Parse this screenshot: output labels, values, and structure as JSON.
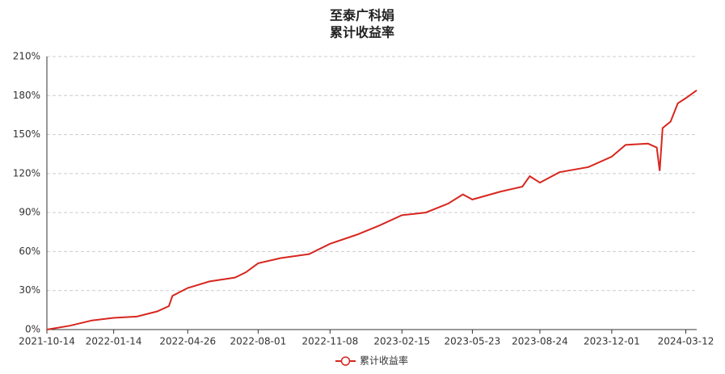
{
  "chart_data": {
    "type": "line",
    "title": "至泰广科娟",
    "subtitle": "累计收益率",
    "x": [
      "2021-10-14",
      "2021-11-15",
      "2021-12-15",
      "2022-01-14",
      "2022-02-15",
      "2022-03-15",
      "2022-03-31",
      "2022-04-05",
      "2022-04-26",
      "2022-05-26",
      "2022-06-30",
      "2022-07-15",
      "2022-08-01",
      "2022-09-01",
      "2022-10-10",
      "2022-11-08",
      "2022-12-15",
      "2023-01-15",
      "2023-02-15",
      "2023-03-20",
      "2023-04-20",
      "2023-05-10",
      "2023-05-23",
      "2023-06-30",
      "2023-07-31",
      "2023-08-10",
      "2023-08-24",
      "2023-09-20",
      "2023-10-30",
      "2023-12-01",
      "2023-12-20",
      "2024-01-20",
      "2024-02-01",
      "2024-02-05",
      "2024-02-09",
      "2024-02-20",
      "2024-03-01",
      "2024-03-12",
      "2024-03-27"
    ],
    "series": [
      {
        "name": "累计收益率",
        "color": "#d7261e",
        "values": [
          0,
          3,
          7,
          9,
          10,
          14,
          18,
          26,
          32,
          37,
          40,
          44,
          51,
          55,
          58,
          66,
          73,
          80,
          88,
          90,
          97,
          104,
          100,
          106,
          110,
          118,
          113,
          121,
          125,
          133,
          142,
          143,
          140,
          122,
          155,
          160,
          174,
          178,
          184
        ]
      }
    ],
    "xlim": [
      "2021-10-14",
      "2024-03-27"
    ],
    "xticks": [
      "2021-10-14",
      "2022-01-14",
      "2022-04-26",
      "2022-08-01",
      "2022-11-08",
      "2023-02-15",
      "2023-05-23",
      "2023-08-24",
      "2023-12-01",
      "2024-03-12"
    ],
    "ylim": [
      0,
      210
    ],
    "yticks": [
      {
        "value": 0,
        "label": "0%"
      },
      {
        "value": 30,
        "label": "30%"
      },
      {
        "value": 60,
        "label": "60%"
      },
      {
        "value": 90,
        "label": "90%"
      },
      {
        "value": 120,
        "label": "120%"
      },
      {
        "value": 150,
        "label": "150%"
      },
      {
        "value": 180,
        "label": "180%"
      },
      {
        "value": 210,
        "label": "210%"
      }
    ],
    "grid": true,
    "legend": "bottom"
  }
}
